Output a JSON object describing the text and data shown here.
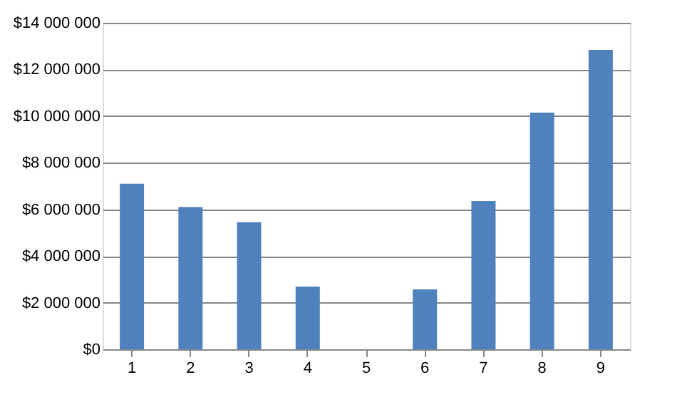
{
  "chart_data": {
    "type": "bar",
    "categories": [
      "1",
      "2",
      "3",
      "4",
      "5",
      "6",
      "7",
      "8",
      "9"
    ],
    "values": [
      7100000,
      6100000,
      5450000,
      2690000,
      0,
      2570000,
      6360000,
      10150000,
      12840000
    ],
    "color": "#4f81bd",
    "ylim": [
      0,
      14000000
    ],
    "yticks": [
      {
        "value": 0,
        "label": "$0"
      },
      {
        "value": 2000000,
        "label": "$2 000 000"
      },
      {
        "value": 4000000,
        "label": "$4 000 000"
      },
      {
        "value": 6000000,
        "label": "$6 000 000"
      },
      {
        "value": 8000000,
        "label": "$8 000 000"
      },
      {
        "value": 10000000,
        "label": "$10 000 000"
      },
      {
        "value": 12000000,
        "label": "$12 000 000"
      },
      {
        "value": 14000000,
        "label": "$14 000 000"
      }
    ],
    "grid": "y"
  }
}
